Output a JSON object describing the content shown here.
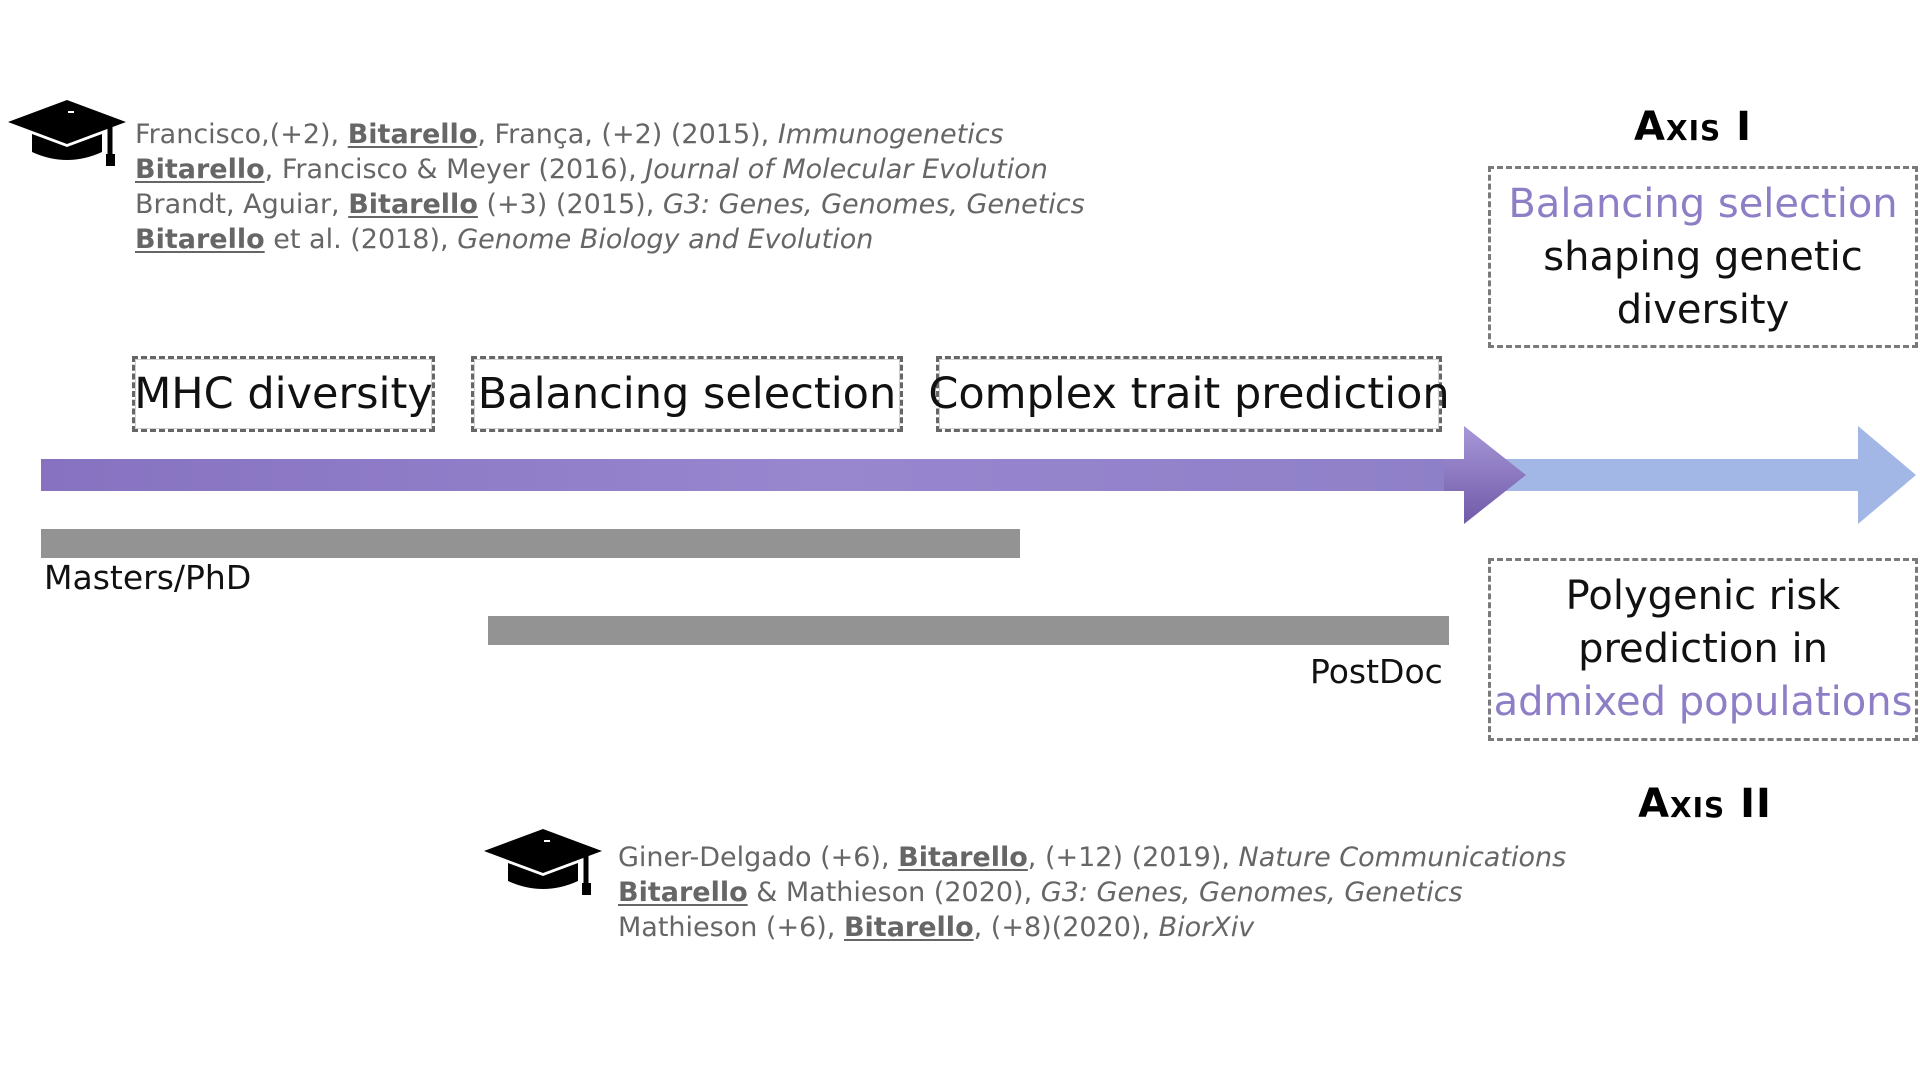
{
  "colors": {
    "purple": "#8e7ec6",
    "purple_dark": "#7a68b8",
    "arrow_light": "#a2b7e6",
    "bar_gray": "#939393",
    "citation_gray": "#666666"
  },
  "icons": {
    "top": "graduation-cap-icon",
    "bottom": "graduation-cap-icon"
  },
  "pubs_top": [
    {
      "pre": "Francisco,(+2), ",
      "author": "Bitarello",
      "post": ", França, (+2) (2015), ",
      "journal": "Immunogenetics"
    },
    {
      "pre": "",
      "author": "Bitarello",
      "post": ", Francisco & Meyer (2016), ",
      "journal": "Journal of Molecular Evolution"
    },
    {
      "pre": "Brandt, Aguiar, ",
      "author": "Bitarello",
      "post": " (+3) (2015), ",
      "journal": "G3: Genes, Genomes, Genetics"
    },
    {
      "pre": "",
      "author": "Bitarello",
      "post": " et al. (2018), ",
      "journal": "Genome Biology and Evolution"
    }
  ],
  "pubs_bottom": [
    {
      "pre": "Giner-Delgado (+6), ",
      "author": "Bitarello",
      "post": ", (+12) (2019), ",
      "journal": "Nature Communications"
    },
    {
      "pre": "",
      "author": "Bitarello",
      "post": " & Mathieson (2020), ",
      "journal": "G3: Genes, Genomes, Genetics"
    },
    {
      "pre": "Mathieson (+6), ",
      "author": "Bitarello",
      "post": ", (+8)(2020), ",
      "journal": "BiorXiv"
    }
  ],
  "topics": [
    "MHC diversity",
    "Balancing selection",
    "Complex trait prediction"
  ],
  "periods": {
    "masters": "Masters/PhD",
    "postdoc": "PostDoc"
  },
  "axis1": {
    "title": "Axis I",
    "line1": "Balancing selection",
    "line2": "shaping genetic",
    "line3": "diversity"
  },
  "axis2": {
    "title": "Axis II",
    "line1": "Polygenic risk",
    "line2": "prediction in",
    "line3": "admixed populations"
  }
}
